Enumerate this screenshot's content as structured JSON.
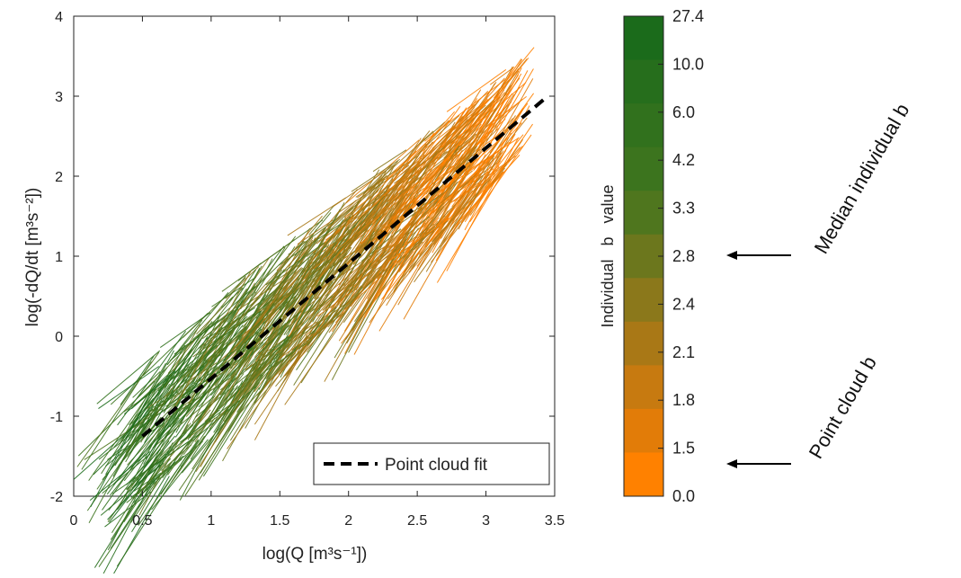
{
  "chart_data": {
    "type": "line",
    "xlabel": "log(Q [m³s⁻¹])",
    "ylabel": "log(-dQ/dt [m³s⁻²])",
    "xlim": [
      0,
      3.5
    ],
    "ylim": [
      -2,
      4
    ],
    "xticks": [
      "0",
      "0.5",
      "1",
      "1.5",
      "2",
      "2.5",
      "3",
      "3.5"
    ],
    "yticks": [
      "-2",
      "-1",
      "0",
      "1",
      "2",
      "3",
      "4"
    ],
    "grid": false,
    "legend": {
      "position": "bottom-right",
      "entries": [
        "Point cloud fit"
      ]
    },
    "series": [
      {
        "name": "Point cloud fit",
        "style": "dashed",
        "color": "#000000",
        "x": [
          0.5,
          3.45
        ],
        "y": [
          -1.25,
          3.0
        ]
      }
    ],
    "cloud": {
      "description": "many short recession segments colored by individual b",
      "x_range": [
        0.5,
        3.45
      ],
      "y_range": [
        -1.7,
        3.3
      ]
    }
  },
  "colorbar": {
    "title": "Individual   b   value",
    "tick_labels": [
      "27.4",
      "10.0",
      "6.0",
      "4.2",
      "3.3",
      "2.8",
      "2.4",
      "2.1",
      "1.8",
      "1.5",
      "0.0"
    ],
    "colors_top_to_bottom": [
      "#1b6b1b",
      "#266e1c",
      "#31711d",
      "#3c741e",
      "#4f761e",
      "#6c771d",
      "#8b781b",
      "#a97816",
      "#c77a10",
      "#e27c08",
      "#ff8100"
    ]
  },
  "annotations": {
    "median_label": "Median individual b",
    "point_cloud_label": "Point cloud b",
    "median_arrow_at": "2.8",
    "point_cloud_arrow_at": "1.5"
  },
  "colors": {
    "green": "#1b6b1b",
    "orange": "#ff8100",
    "fit": "#000000"
  }
}
